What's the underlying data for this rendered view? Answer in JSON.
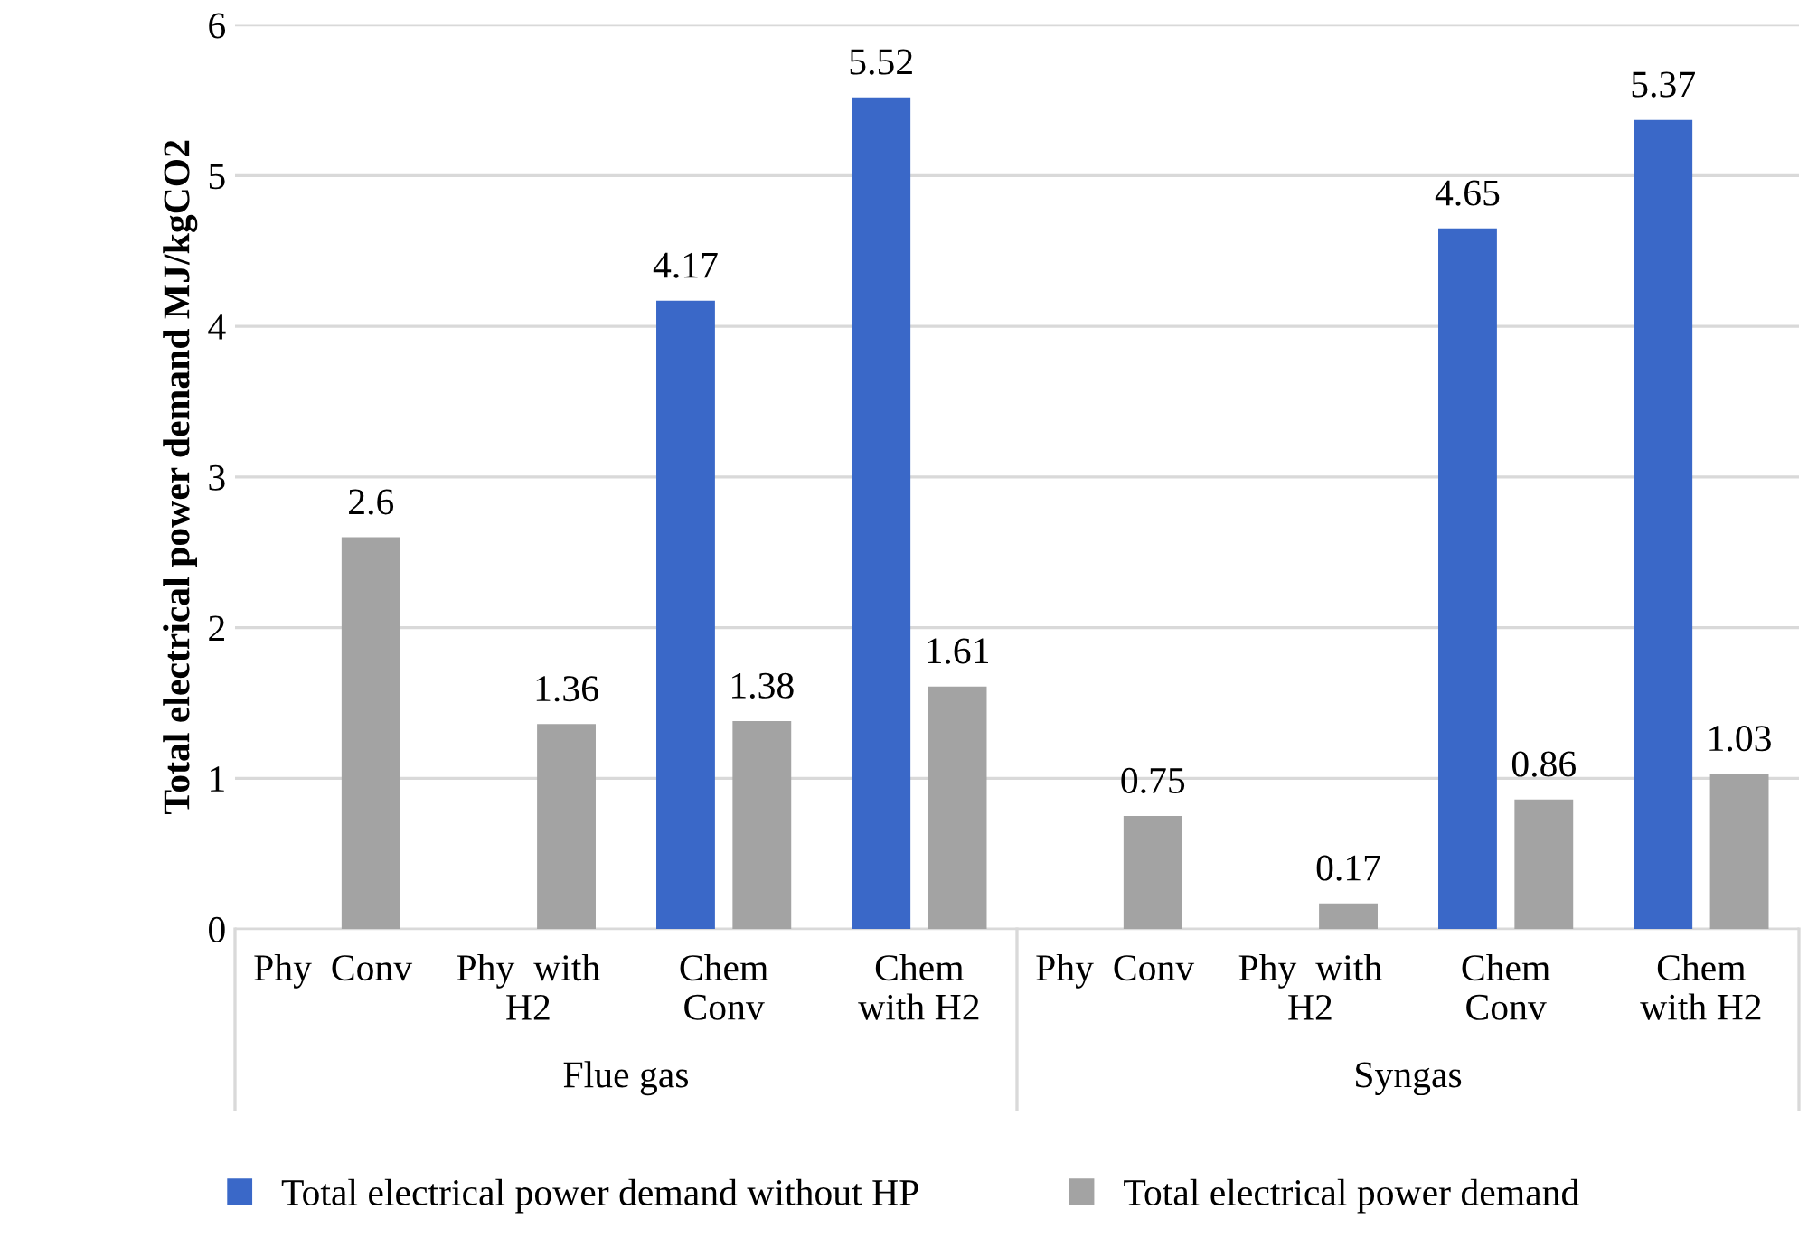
{
  "chart_data": {
    "type": "bar",
    "ylabel": "Total electrical power demand MJ/kgCO2",
    "categories": [
      "Phy  Conv",
      "Phy  with\nH2",
      "Chem\nConv",
      "Chem\nwith H2",
      "Phy  Conv",
      "Phy  with\nH2",
      "Chem\nConv",
      "Chem\nwith H2"
    ],
    "series": [
      {
        "name": "Total electrical power demand without HP",
        "color": "#3a68c8",
        "values": [
          null,
          null,
          4.17,
          5.52,
          null,
          null,
          4.65,
          5.37
        ]
      },
      {
        "name": "Total electrical power demand",
        "color": "#a3a3a3",
        "values": [
          2.6,
          1.36,
          1.38,
          1.61,
          0.75,
          0.17,
          0.86,
          1.03
        ]
      }
    ],
    "annotations": [
      "Flue gas",
      "Syngas"
    ],
    "ylim": [
      0,
      6
    ],
    "yticks": [
      0,
      1,
      2,
      3,
      4,
      5,
      6
    ],
    "grid": "y",
    "legend": "bottom",
    "data_labels": true
  }
}
